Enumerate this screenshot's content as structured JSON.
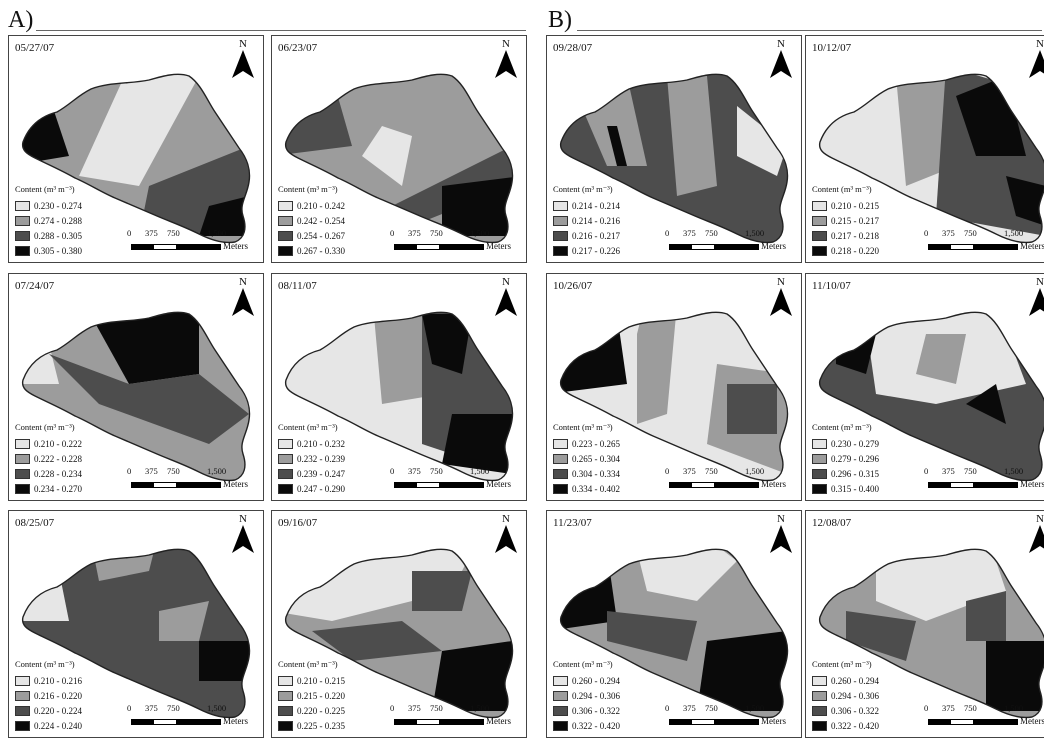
{
  "groups": [
    {
      "label": "A)"
    },
    {
      "label": "B)"
    }
  ],
  "legend_title": "Content (m³ m⁻³)",
  "north_label": "N",
  "scale": {
    "ticks": [
      "0",
      "375",
      "750",
      "1,500"
    ],
    "unit": "Meters"
  },
  "colors": {
    "class1": "#e6e6e6",
    "class2": "#9c9c9c",
    "class3": "#4d4d4d",
    "class4": "#0a0a0a"
  },
  "panels": [
    {
      "date": "05/27/07",
      "classes": [
        "0.230 - 0.274",
        "0.274 - 0.288",
        "0.288 - 0.305",
        "0.305 - 0.380"
      ]
    },
    {
      "date": "06/23/07",
      "classes": [
        "0.210 - 0.242",
        "0.242 - 0.254",
        "0.254 - 0.267",
        "0.267 - 0.330"
      ]
    },
    {
      "date": "09/28/07",
      "classes": [
        "0.214 - 0.214",
        "0.214 - 0.216",
        "0.216 - 0.217",
        "0.217 - 0.226"
      ]
    },
    {
      "date": "10/12/07",
      "classes": [
        "0.210 - 0.215",
        "0.215 - 0.217",
        "0.217 - 0.218",
        "0.218 - 0.220"
      ]
    },
    {
      "date": "07/24/07",
      "classes": [
        "0.210 - 0.222",
        "0.222 - 0.228",
        "0.228 - 0.234",
        "0.234 - 0.270"
      ]
    },
    {
      "date": "08/11/07",
      "classes": [
        "0.210 - 0.232",
        "0.232 - 0.239",
        "0.239 - 0.247",
        "0.247 - 0.290"
      ]
    },
    {
      "date": "10/26/07",
      "classes": [
        "0.223 - 0.265",
        "0.265 - 0.304",
        "0.304 - 0.334",
        "0.334 - 0.402"
      ]
    },
    {
      "date": "11/10/07",
      "classes": [
        "0.230 - 0.279",
        "0.279 - 0.296",
        "0.296 - 0.315",
        "0.315 - 0.400"
      ]
    },
    {
      "date": "08/25/07",
      "classes": [
        "0.210 - 0.216",
        "0.216 - 0.220",
        "0.220 - 0.224",
        "0.224 - 0.240"
      ]
    },
    {
      "date": "09/16/07",
      "classes": [
        "0.210 - 0.215",
        "0.215 - 0.220",
        "0.220 - 0.225",
        "0.225 - 0.235"
      ]
    },
    {
      "date": "11/23/07",
      "classes": [
        "0.260 - 0.294",
        "0.294 - 0.306",
        "0.306 - 0.322",
        "0.322 - 0.420"
      ]
    },
    {
      "date": "12/08/07",
      "classes": [
        "0.260 - 0.294",
        "0.294 - 0.306",
        "0.306 - 0.322",
        "0.322 - 0.420"
      ]
    }
  ]
}
